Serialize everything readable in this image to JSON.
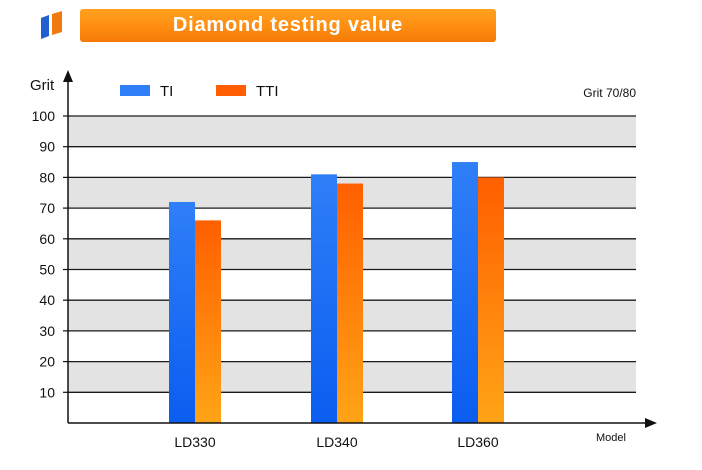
{
  "header": {
    "title": "Diamond testing value"
  },
  "chart_data": {
    "type": "bar",
    "title": "Diamond testing value",
    "ylabel": "Grit",
    "xlabel": "Model",
    "annotation": "Grit 70/80",
    "categories": [
      "LD330",
      "LD340",
      "LD360"
    ],
    "series": [
      {
        "name": "TI",
        "values": [
          72,
          81,
          85
        ]
      },
      {
        "name": "TTI",
        "values": [
          66,
          78,
          80
        ]
      }
    ],
    "ylim": [
      0,
      100
    ],
    "yticks": [
      10,
      20,
      30,
      40,
      50,
      60,
      70,
      80,
      90,
      100
    ],
    "grid": true,
    "legend": "top-left",
    "colors": {
      "TI_top": "#2f7ff8",
      "TI_bottom": "#0b5df0",
      "TTI_top": "#ff5f00",
      "TTI_bottom": "#ffa416",
      "band": "#e3e3e3",
      "gridline": "#1a1a1a"
    }
  }
}
